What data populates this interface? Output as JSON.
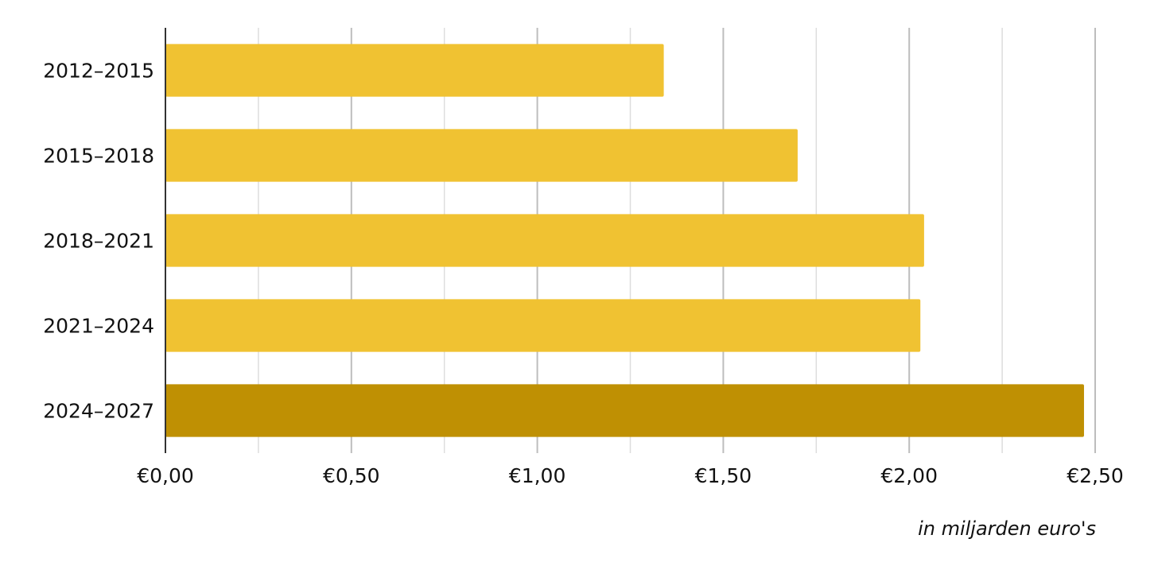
{
  "chart_data": {
    "type": "bar",
    "orientation": "horizontal",
    "categories": [
      "2012–2015",
      "2015–2018",
      "2018–2021",
      "2021–2024",
      "2024–2027"
    ],
    "values": [
      1.34,
      1.7,
      2.04,
      2.03,
      2.47
    ],
    "bar_colors": [
      "#F0C232",
      "#F0C232",
      "#F0C232",
      "#F0C232",
      "#BF9003"
    ],
    "x_ticks": [
      0,
      0.5,
      1.0,
      1.5,
      2.0,
      2.5
    ],
    "x_tick_labels": [
      "€0,00",
      "€0,50",
      "€1,00",
      "€1,50",
      "€2,00",
      "€2,50"
    ],
    "xlim": [
      0,
      2.5
    ],
    "xlabel": "in miljarden euro's",
    "ylabel": "",
    "title": "",
    "grid": true,
    "minor_grid": true,
    "legend": "none"
  }
}
